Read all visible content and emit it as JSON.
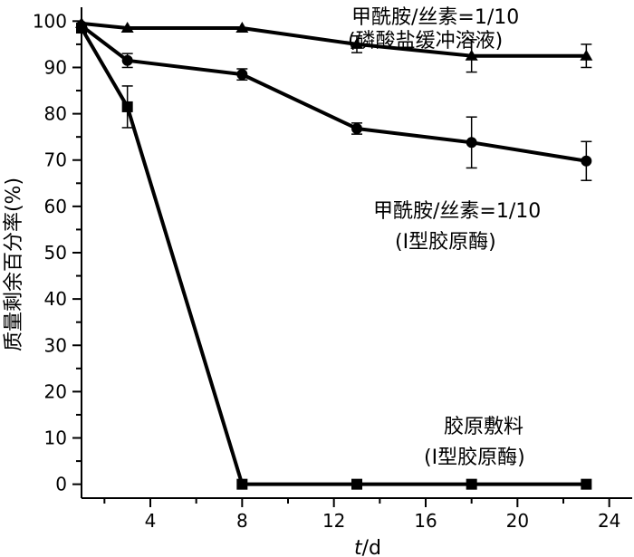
{
  "chart_data": {
    "type": "line",
    "xlabel_italic": "t",
    "xlabel_unit": "/d",
    "ylabel": "质量剩余百分率(%)",
    "xlim": [
      1,
      25
    ],
    "ylim": [
      -3,
      103
    ],
    "xticks": [
      4,
      8,
      12,
      16,
      20,
      24
    ],
    "yticks": [
      0,
      10,
      20,
      30,
      40,
      50,
      60,
      70,
      80,
      90,
      100
    ],
    "grid": false,
    "series": [
      {
        "marker": "triangle",
        "label_lines": [
          "甲酰胺/丝素=1/10",
          "(磷酸盐缓冲溶液)"
        ],
        "x": [
          1,
          3,
          8,
          13,
          18,
          23
        ],
        "y": [
          99.5,
          98.5,
          98.5,
          95,
          92.5,
          92.5
        ],
        "err": [
          0,
          0,
          0,
          1.8,
          3.5,
          2.5
        ]
      },
      {
        "marker": "circle",
        "label_lines": [
          "甲酰胺/丝素=1/10",
          "(Ⅰ型胶原酶)"
        ],
        "x": [
          1,
          3,
          8,
          13,
          18,
          23
        ],
        "y": [
          99,
          91.5,
          88.5,
          76.8,
          73.8,
          69.8
        ],
        "err": [
          0,
          1.5,
          1.2,
          1.2,
          5.5,
          4.2
        ]
      },
      {
        "marker": "square",
        "label_lines": [
          "胶原敷料",
          "(Ⅰ型胶原酶)"
        ],
        "x": [
          1,
          3,
          8,
          13,
          18,
          23
        ],
        "y": [
          98.5,
          81.5,
          0,
          0,
          0,
          0
        ],
        "err": [
          0,
          4.5,
          0,
          0,
          0,
          0
        ]
      }
    ]
  }
}
